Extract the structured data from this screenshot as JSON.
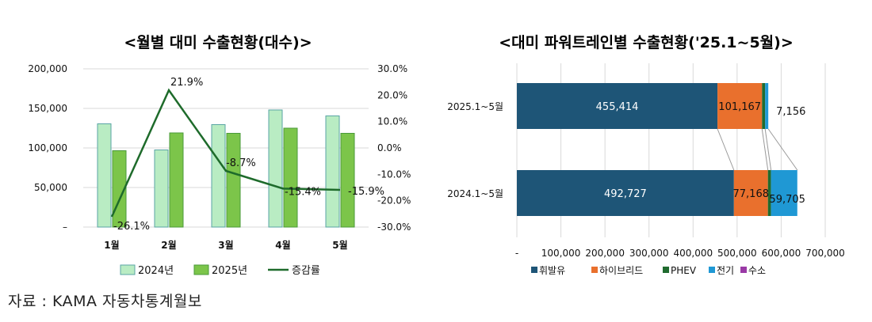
{
  "chart_data": [
    {
      "type": "bar",
      "title": "<월별 대미 수출현황(대수)>",
      "categories": [
        "1월",
        "2월",
        "3월",
        "4월",
        "5월"
      ],
      "series": [
        {
          "name": "2024년",
          "values": [
            130500,
            97500,
            129500,
            148000,
            140500
          ],
          "color": "#b9ecc3",
          "stroke": "#5aa5a5"
        },
        {
          "name": "2025년",
          "values": [
            96500,
            119000,
            118500,
            125000,
            118500
          ],
          "color": "#7cc54a",
          "stroke": "#4a9a3a"
        },
        {
          "name": "증감률",
          "type": "line",
          "axis": "right",
          "values": [
            -26.1,
            21.9,
            -8.7,
            -15.4,
            -15.9
          ],
          "color": "#1e6b2b"
        }
      ],
      "data_labels": [
        "-26.1%",
        "21.9%",
        "-8.7%",
        "-15.4%",
        "-15.9%"
      ],
      "left_axis": {
        "ylim": [
          0,
          200000
        ],
        "ticks": [
          "–",
          "50,000",
          "100,000",
          "150,000",
          "200,000"
        ]
      },
      "right_axis": {
        "ylim": [
          -30,
          30
        ],
        "ticks": [
          "-30.0%",
          "-20.0%",
          "-10.0%",
          "0.0%",
          "10.0%",
          "20.0%",
          "30.0%"
        ]
      },
      "grid": true,
      "legend": "bottom"
    },
    {
      "type": "bar",
      "orientation": "horizontal",
      "stacked": true,
      "title": "<대미 파워트레인별 수출현황('25.1~5월)>",
      "categories": [
        "2025.1~5월",
        "2024.1~5월"
      ],
      "series": [
        {
          "name": "휘발유",
          "values": [
            455414,
            492727
          ],
          "color": "#1e5577"
        },
        {
          "name": "하이브리드",
          "values": [
            101167,
            77168
          ],
          "color": "#e9702d"
        },
        {
          "name": "PHEV",
          "values": [
            7000,
            7000
          ],
          "color": "#206b2f"
        },
        {
          "name": "전기",
          "values": [
            7156,
            59705
          ],
          "color": "#1f98d4"
        },
        {
          "name": "수소",
          "values": [
            0,
            0
          ],
          "color": "#9a3aa6"
        }
      ],
      "data_labels": [
        [
          "455,414",
          "101,167",
          "7,156"
        ],
        [
          "492,727",
          "77,168",
          "59,705"
        ]
      ],
      "xlim": [
        0,
        700000
      ],
      "x_ticks": [
        "-",
        "100,000",
        "200,000",
        "300,000",
        "400,000",
        "500,000",
        "600,000",
        "700,000"
      ],
      "grid": true,
      "legend": "bottom"
    }
  ],
  "source": "자료 : KAMA 자동차통계월보"
}
